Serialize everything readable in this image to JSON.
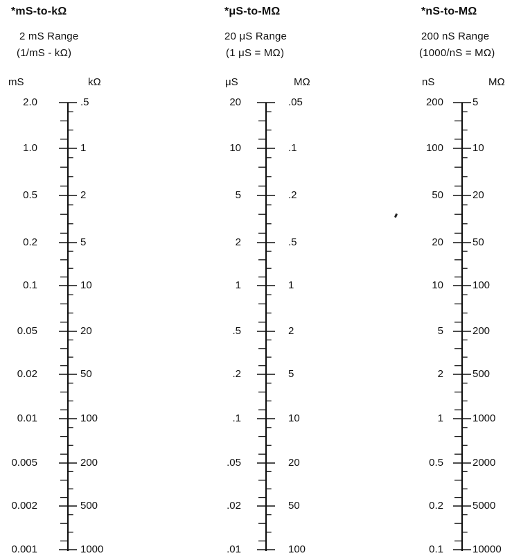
{
  "scales": [
    {
      "title": "*mS-to-kΩ",
      "range": "2 mS Range",
      "formula": "(1/mS - kΩ)",
      "left_unit": "mS",
      "right_unit": "kΩ",
      "labels": [
        {
          "left": "2.0",
          "right": ".5"
        },
        {
          "left": "1.0",
          "right": "1"
        },
        {
          "left": "0.5",
          "right": "2"
        },
        {
          "left": "0.2",
          "right": "5"
        },
        {
          "left": "0.1",
          "right": "10"
        },
        {
          "left": "0.05",
          "right": "20"
        },
        {
          "left": "0.02",
          "right": "50"
        },
        {
          "left": "0.01",
          "right": "100"
        },
        {
          "left": "0.005",
          "right": "200"
        },
        {
          "left": "0.002",
          "right": "500"
        },
        {
          "left": "0.001",
          "right": "1000"
        }
      ]
    },
    {
      "title": "*μS-to-MΩ",
      "range": "20 μS Range",
      "formula": "(1 μS = MΩ)",
      "left_unit": "μS",
      "right_unit": "MΩ",
      "labels": [
        {
          "left": "20",
          "right": ".05"
        },
        {
          "left": "10",
          "right": ".1"
        },
        {
          "left": "5",
          "right": ".2"
        },
        {
          "left": "2",
          "right": ".5"
        },
        {
          "left": "1",
          "right": "1"
        },
        {
          "left": ".5",
          "right": "2"
        },
        {
          "left": ".2",
          "right": "5"
        },
        {
          "left": ".1",
          "right": "10"
        },
        {
          "left": ".05",
          "right": "20"
        },
        {
          "left": ".02",
          "right": "50"
        },
        {
          "left": ".01",
          "right": "100"
        }
      ]
    },
    {
      "title": "*nS-to-MΩ",
      "range": "200 nS Range",
      "formula": "(1000/nS = MΩ)",
      "left_unit": "nS",
      "right_unit": "MΩ",
      "labels": [
        {
          "left": "200",
          "right": "5"
        },
        {
          "left": "100",
          "right": "10"
        },
        {
          "left": "50",
          "right": "20"
        },
        {
          "left": "20",
          "right": "50"
        },
        {
          "left": "10",
          "right": "100"
        },
        {
          "left": "5",
          "right": "200"
        },
        {
          "left": "2",
          "right": "500"
        },
        {
          "left": "1",
          "right": "1000"
        },
        {
          "left": "0.5",
          "right": "2000"
        },
        {
          "left": "0.2",
          "right": "5000"
        },
        {
          "left": "0.1",
          "right": "10000"
        }
      ]
    }
  ]
}
